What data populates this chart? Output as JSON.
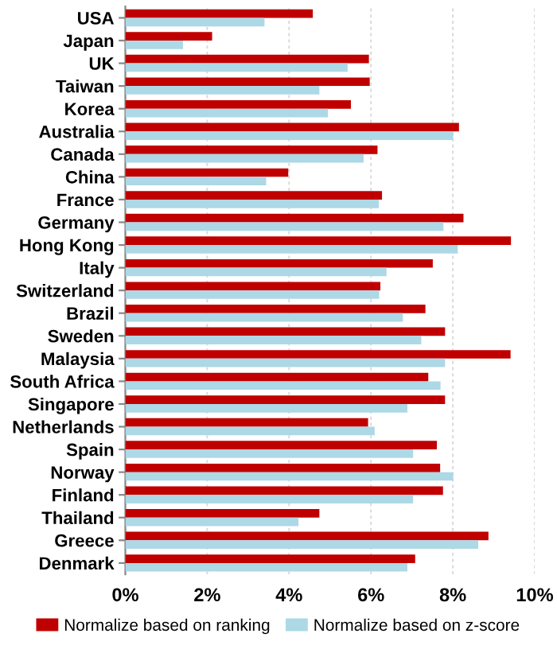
{
  "chart_data": {
    "type": "bar",
    "orientation": "horizontal",
    "categories": [
      "USA",
      "Japan",
      "UK",
      "Taiwan",
      "Korea",
      "Australia",
      "Canada",
      "China",
      "France",
      "Germany",
      "Hong Kong",
      "Italy",
      "Switzerland",
      "Brazil",
      "Sweden",
      "Malaysia",
      "South Africa",
      "Singapore",
      "Netherlands",
      "Spain",
      "Norway",
      "Finland",
      "Thailand",
      "Greece",
      "Denmark"
    ],
    "series": [
      {
        "name": "Normalize based on ranking",
        "color": "#c00000",
        "values": [
          4.58,
          2.12,
          5.95,
          5.97,
          5.51,
          8.15,
          6.16,
          3.98,
          6.27,
          8.26,
          9.42,
          7.51,
          6.23,
          7.33,
          7.81,
          9.41,
          7.4,
          7.81,
          5.93,
          7.61,
          7.69,
          7.76,
          4.74,
          8.87,
          7.08
        ]
      },
      {
        "name": "Normalize based on z-score",
        "color": "#add8e6",
        "values": [
          3.4,
          1.41,
          5.43,
          4.74,
          4.95,
          8.01,
          5.82,
          3.44,
          6.19,
          7.77,
          8.12,
          6.38,
          6.2,
          6.78,
          7.23,
          7.81,
          7.7,
          6.89,
          6.09,
          7.03,
          8.01,
          7.03,
          4.23,
          8.62,
          6.89
        ]
      }
    ],
    "xlim": [
      0,
      10
    ],
    "xticks": [
      {
        "value": 0,
        "label": "0%"
      },
      {
        "value": 2,
        "label": "2%"
      },
      {
        "value": 4,
        "label": "4%"
      },
      {
        "value": 6,
        "label": "6%"
      },
      {
        "value": 8,
        "label": "8%"
      },
      {
        "value": 10,
        "label": "10%"
      }
    ],
    "grid": "x",
    "legend": "bottom"
  }
}
